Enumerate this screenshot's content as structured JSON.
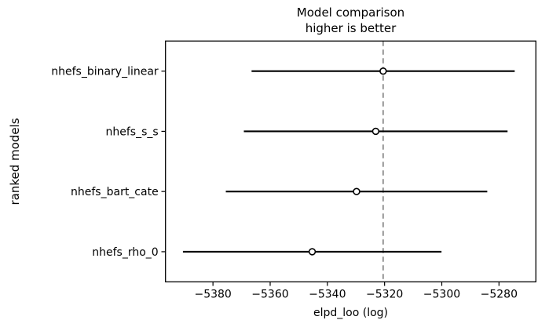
{
  "figure": {
    "title_line1": "Model comparison",
    "title_line2": "higher is better",
    "xlabel": "elpd_loo (log)",
    "ylabel": "ranked models"
  },
  "chart_data": {
    "type": "scatter",
    "subtype": "horizontal-errorbar-dotplot",
    "title": "Model comparison\nhigher is better",
    "xlabel": "elpd_loo (log)",
    "ylabel": "ranked models",
    "categories": [
      "nhefs_binary_linear",
      "nhefs_s_s",
      "nhefs_bart_cate",
      "nhefs_rho_0"
    ],
    "series": [
      {
        "name": "elpd_loo",
        "values": [
          -5320.5,
          -5323.1,
          -5329.8,
          -5345.3
        ],
        "se": [
          46.0,
          46.1,
          45.7,
          45.2
        ]
      }
    ],
    "intervals": [
      [
        -5366.5,
        -5274.5
      ],
      [
        -5369.2,
        -5277.0
      ],
      [
        -5375.5,
        -5284.1
      ],
      [
        -5390.5,
        -5300.1
      ]
    ],
    "reference_line_x": -5320.5,
    "xticks": [
      -5380,
      -5360,
      -5340,
      -5320,
      -5300,
      -5280
    ],
    "xlim": [
      -5396.6,
      -5267.1
    ],
    "grid": false,
    "legend": false,
    "colors": {
      "line": "#000000",
      "marker_face": "#ffffff",
      "marker_edge": "#000000",
      "reference": "#808080",
      "frame": "#000000",
      "text": "#000000"
    }
  }
}
